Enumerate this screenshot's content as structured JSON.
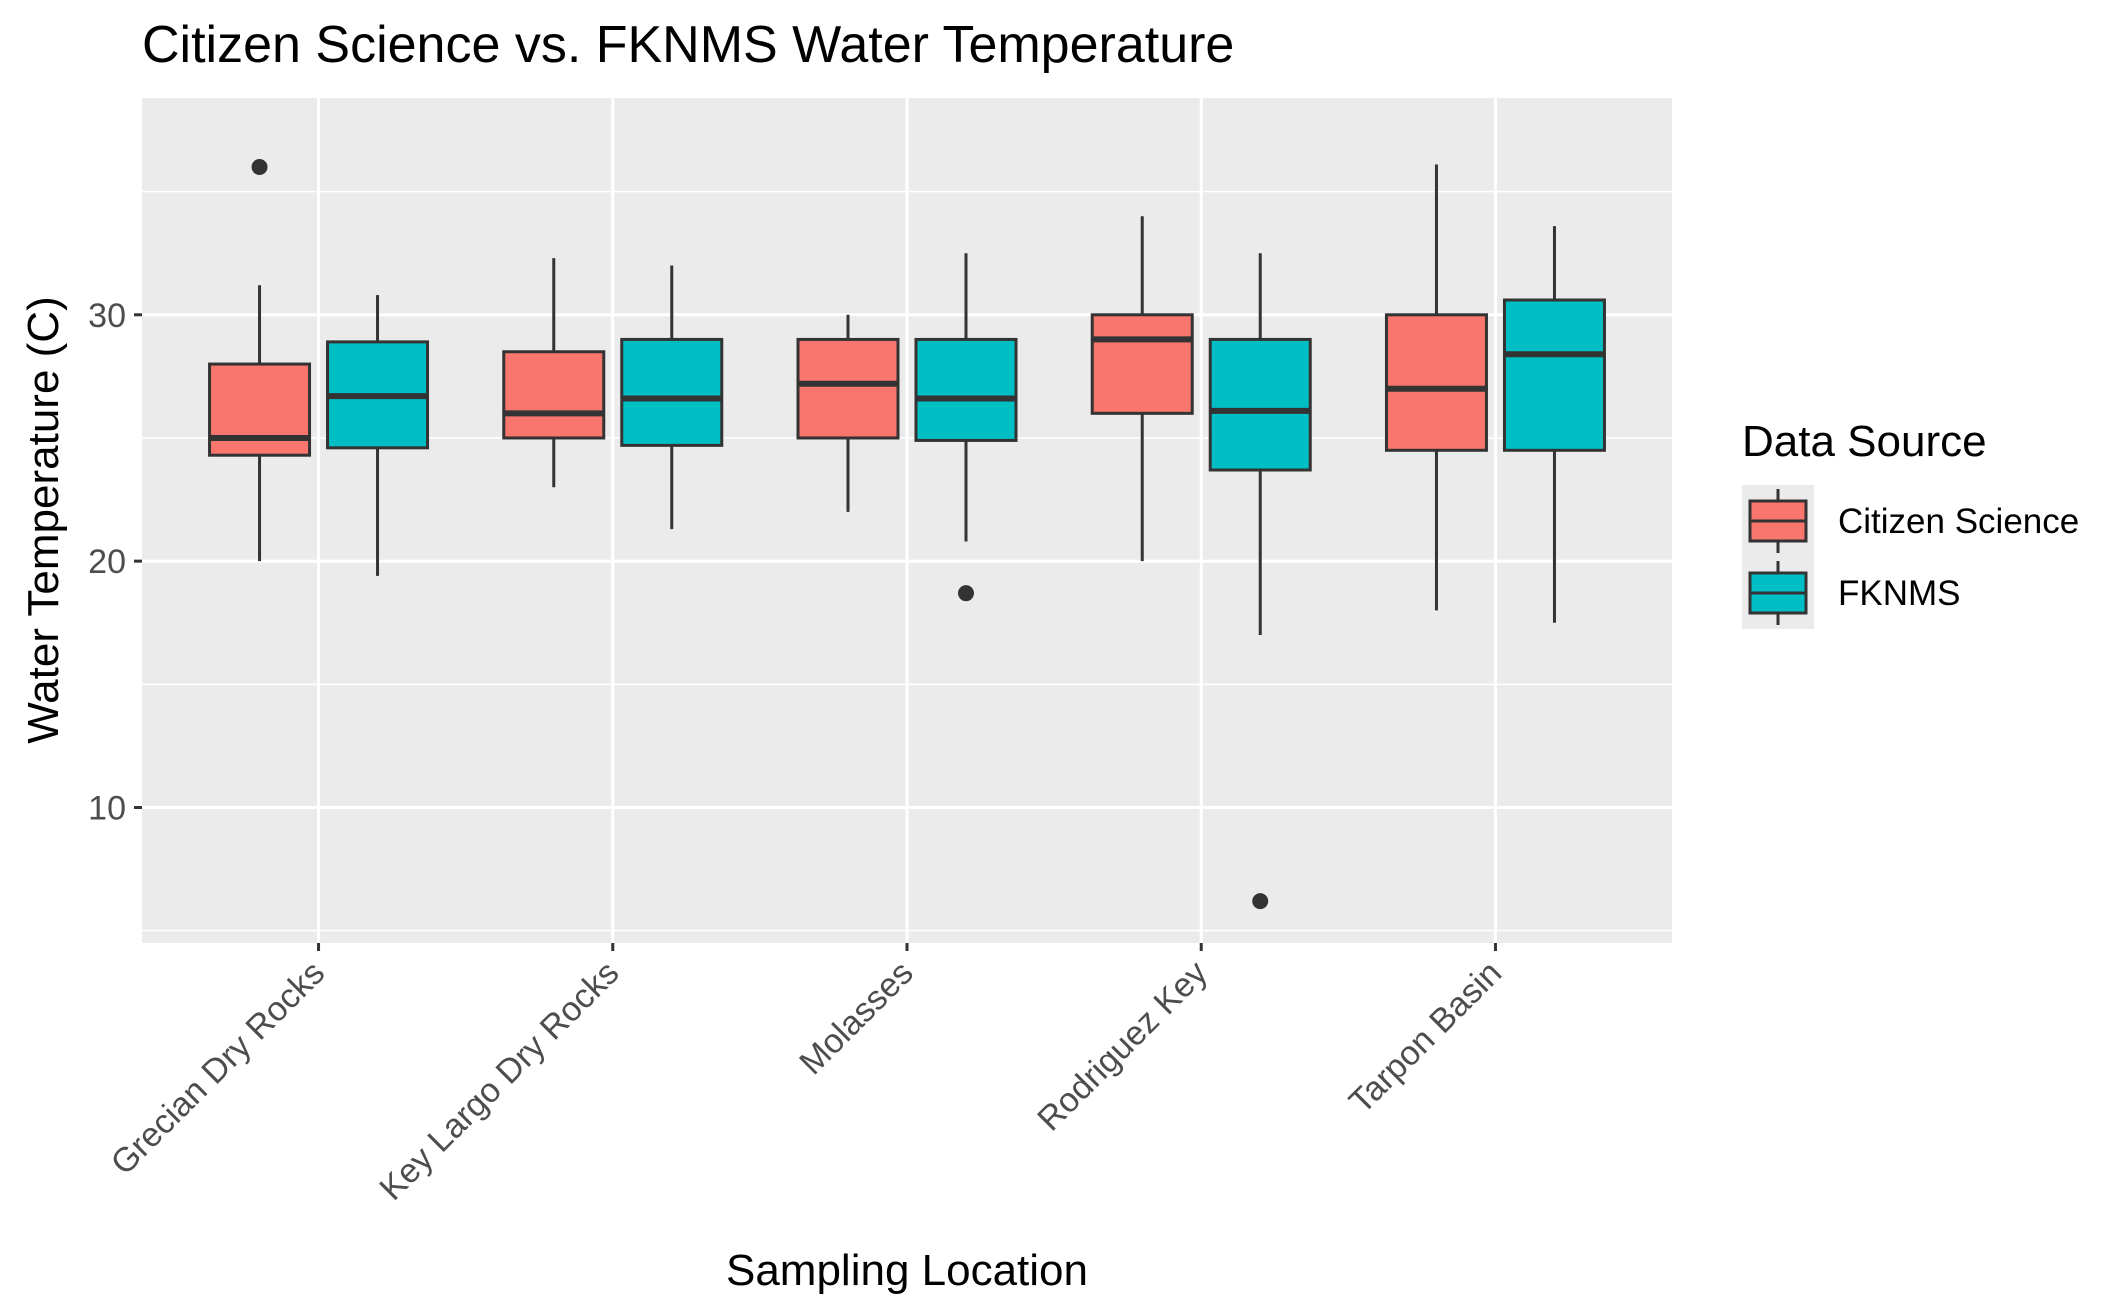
{
  "chart_data": {
    "type": "boxplot",
    "title": "Citizen Science vs. FKNMS Water Temperature",
    "xlabel": "Sampling Location",
    "ylabel": "Water Temperature (C)",
    "ylim": [
      4.5,
      38.8
    ],
    "yticks": [
      10,
      20,
      30
    ],
    "grid": true,
    "legend": {
      "title": "Data Source",
      "position": "right"
    },
    "categories": [
      "Grecian Dry Rocks",
      "Key Largo Dry Rocks",
      "Molasses",
      "Rodriguez Key",
      "Tarpon Basin"
    ],
    "colors": {
      "Citizen Science": "#F8766D",
      "FKNMS": "#00BFC4",
      "panel": "#EBEBEB",
      "grid": "#FFFFFF",
      "outline": "#333333"
    },
    "series": [
      {
        "name": "Citizen Science",
        "boxes": [
          {
            "min": 20.0,
            "q1": 24.3,
            "median": 25.0,
            "q3": 28.0,
            "max": 31.2,
            "outliers": [
              36.0
            ]
          },
          {
            "min": 23.0,
            "q1": 25.0,
            "median": 26.0,
            "q3": 28.5,
            "max": 32.3,
            "outliers": []
          },
          {
            "min": 22.0,
            "q1": 25.0,
            "median": 27.2,
            "q3": 29.0,
            "max": 30.0,
            "outliers": []
          },
          {
            "min": 20.0,
            "q1": 26.0,
            "median": 29.0,
            "q3": 30.0,
            "max": 34.0,
            "outliers": []
          },
          {
            "min": 18.0,
            "q1": 24.5,
            "median": 27.0,
            "q3": 30.0,
            "max": 36.1,
            "outliers": []
          }
        ]
      },
      {
        "name": "FKNMS",
        "boxes": [
          {
            "min": 19.4,
            "q1": 24.6,
            "median": 26.7,
            "q3": 28.9,
            "max": 30.8,
            "outliers": []
          },
          {
            "min": 21.3,
            "q1": 24.7,
            "median": 26.6,
            "q3": 29.0,
            "max": 32.0,
            "outliers": []
          },
          {
            "min": 20.8,
            "q1": 24.9,
            "median": 26.6,
            "q3": 29.0,
            "max": 32.5,
            "outliers": [
              18.7
            ]
          },
          {
            "min": 17.0,
            "q1": 23.7,
            "median": 26.1,
            "q3": 29.0,
            "max": 32.5,
            "outliers": [
              6.2
            ]
          },
          {
            "min": 17.5,
            "q1": 24.5,
            "median": 28.4,
            "q3": 30.6,
            "max": 33.6,
            "outliers": []
          }
        ]
      }
    ]
  }
}
